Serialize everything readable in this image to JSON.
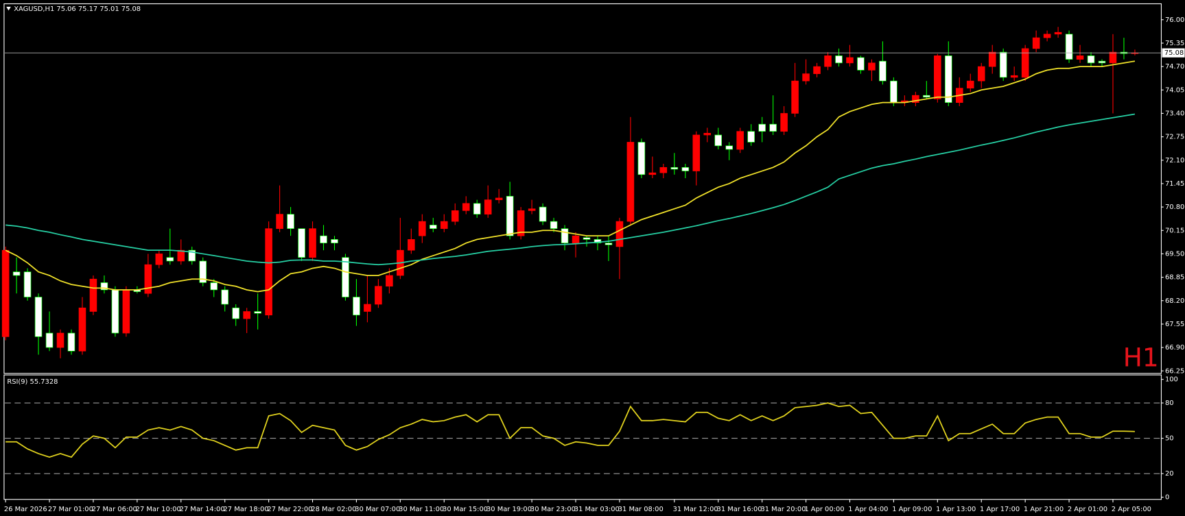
{
  "chart_data": [
    {
      "type": "candlestick",
      "title": "XAGUSD,H1  75.06 75.17 75.01 75.08",
      "annotation": "H1",
      "categories": [
        "26 Mar 2026",
        null,
        null,
        null,
        "27 Mar 01:00",
        null,
        null,
        null,
        "27 Mar 06:00",
        null,
        null,
        null,
        "27 Mar 10:00",
        null,
        null,
        null,
        "27 Mar 14:00",
        null,
        null,
        null,
        "27 Mar 18:00",
        null,
        null,
        null,
        "27 Mar 22:00",
        null,
        null,
        null,
        "28 Mar 02:00",
        null,
        null,
        null,
        "30 Mar 07:00",
        null,
        null,
        null,
        "30 Mar 11:00",
        null,
        null,
        null,
        "30 Mar 15:00",
        null,
        null,
        null,
        "30 Mar 19:00",
        null,
        null,
        null,
        "30 Mar 23:00",
        null,
        null,
        null,
        "31 Mar 03:00",
        null,
        null,
        null,
        "31 Mar 08:00",
        null,
        null,
        null,
        null,
        "31 Mar 12:00",
        null,
        null,
        null,
        "31 Mar 16:00",
        null,
        null,
        null,
        "31 Mar 20:00",
        null,
        null,
        null,
        "1 Apr 00:00",
        null,
        null,
        null,
        "1 Apr 04:00",
        null,
        null,
        null,
        "1 Apr 09:00",
        null,
        null,
        null,
        "1 Apr 13:00",
        null,
        null,
        null,
        "1 Apr 17:00",
        null,
        null,
        null,
        "1 Apr 21:00",
        null,
        null,
        null,
        "2 Apr 01:00",
        null,
        null,
        null,
        "2 Apr 05:00",
        null,
        null
      ],
      "open": [
        67.2,
        69.0,
        69.0,
        68.3,
        67.3,
        66.9,
        67.3,
        66.8,
        67.9,
        68.7,
        68.5,
        67.3,
        68.5,
        68.4,
        69.2,
        69.4,
        69.3,
        69.6,
        69.3,
        68.7,
        68.5,
        68.0,
        67.7,
        67.9,
        67.8,
        70.2,
        70.6,
        70.2,
        69.4,
        70.0,
        69.9,
        69.4,
        68.3,
        67.9,
        68.1,
        68.6,
        68.9,
        69.6,
        70.0,
        70.3,
        70.2,
        70.4,
        70.7,
        70.9,
        70.6,
        71.0,
        71.1,
        70.0,
        70.7,
        70.8,
        70.4,
        70.2,
        69.8,
        69.95,
        69.9,
        69.8,
        69.7,
        70.4,
        72.6,
        71.7,
        71.75,
        71.9,
        71.9,
        71.8,
        72.8,
        72.8,
        72.5,
        72.4,
        72.9,
        73.1,
        73.1,
        72.9,
        73.4,
        74.3,
        74.5,
        74.7,
        75.0,
        74.8,
        74.95,
        74.6,
        74.85,
        74.3,
        73.7,
        73.7,
        73.9,
        73.8,
        75.0,
        73.7,
        74.1,
        74.3,
        74.7,
        75.1,
        74.4,
        74.4,
        75.2,
        75.5,
        75.6,
        75.6,
        74.9,
        75.0,
        74.85,
        74.8,
        75.1,
        75.06
      ],
      "high": [
        69.7,
        69.4,
        69.1,
        68.4,
        67.9,
        67.4,
        67.4,
        68.3,
        68.9,
        68.9,
        68.6,
        68.6,
        68.6,
        69.5,
        69.6,
        70.2,
        69.9,
        69.7,
        69.4,
        68.8,
        68.6,
        68.1,
        68.0,
        68.4,
        70.4,
        71.4,
        70.8,
        70.2,
        70.4,
        70.3,
        70.0,
        69.5,
        68.8,
        68.9,
        68.8,
        69.1,
        70.5,
        70.2,
        70.6,
        70.5,
        70.6,
        70.9,
        71.1,
        71.0,
        71.4,
        71.3,
        71.5,
        70.8,
        71.0,
        70.9,
        70.5,
        70.3,
        70.1,
        70.0,
        70.0,
        70.0,
        70.5,
        73.3,
        72.7,
        72.2,
        72.0,
        72.3,
        72.0,
        72.9,
        73.0,
        73.0,
        72.6,
        73.0,
        73.1,
        73.3,
        73.9,
        73.6,
        74.8,
        74.9,
        74.8,
        75.1,
        75.2,
        75.3,
        75.0,
        74.9,
        75.4,
        74.4,
        73.9,
        74.0,
        74.3,
        75.05,
        75.4,
        74.4,
        74.5,
        74.8,
        75.3,
        75.2,
        74.7,
        75.3,
        75.7,
        75.7,
        75.8,
        75.7,
        75.3,
        75.1,
        74.9,
        75.6,
        75.5,
        75.17
      ],
      "low": [
        67.1,
        68.4,
        68.2,
        66.7,
        66.8,
        66.6,
        66.7,
        66.7,
        67.8,
        68.4,
        67.2,
        67.2,
        68.4,
        68.3,
        69.1,
        69.2,
        69.2,
        69.2,
        68.6,
        68.3,
        67.9,
        67.5,
        67.3,
        67.4,
        67.7,
        70.1,
        70.0,
        69.3,
        69.3,
        69.6,
        69.6,
        68.2,
        67.5,
        67.6,
        68.0,
        68.4,
        68.8,
        69.5,
        69.8,
        70.1,
        70.1,
        70.3,
        70.6,
        70.5,
        70.5,
        70.9,
        69.9,
        69.9,
        70.6,
        70.3,
        70.1,
        69.6,
        69.4,
        69.7,
        69.6,
        69.3,
        68.8,
        70.3,
        71.6,
        71.6,
        71.6,
        71.7,
        71.6,
        71.4,
        72.6,
        72.4,
        72.1,
        72.3,
        72.5,
        72.6,
        72.8,
        72.8,
        73.3,
        74.2,
        74.4,
        74.6,
        74.7,
        74.7,
        74.5,
        74.3,
        74.2,
        73.6,
        73.6,
        73.6,
        73.8,
        73.7,
        73.6,
        73.6,
        74.0,
        74.1,
        74.5,
        74.3,
        74.3,
        74.3,
        75.1,
        75.4,
        75.5,
        74.8,
        74.8,
        74.7,
        74.7,
        73.4,
        74.9,
        75.01
      ],
      "close": [
        69.6,
        68.9,
        68.3,
        67.2,
        66.9,
        67.3,
        66.8,
        68.0,
        68.8,
        68.5,
        67.3,
        68.5,
        68.45,
        69.2,
        69.5,
        69.3,
        69.6,
        69.3,
        68.7,
        68.5,
        68.1,
        67.7,
        67.9,
        67.85,
        70.2,
        70.6,
        70.2,
        69.4,
        70.2,
        69.8,
        69.8,
        68.3,
        67.8,
        68.1,
        68.6,
        68.9,
        69.6,
        69.9,
        70.4,
        70.2,
        70.4,
        70.7,
        70.9,
        70.6,
        71.0,
        71.05,
        70.0,
        70.7,
        70.75,
        70.4,
        70.2,
        69.8,
        70.0,
        69.9,
        69.8,
        69.75,
        70.4,
        72.6,
        71.7,
        71.75,
        71.9,
        71.85,
        71.8,
        72.8,
        72.85,
        72.5,
        72.4,
        72.9,
        72.6,
        72.9,
        72.9,
        73.4,
        74.3,
        74.5,
        74.7,
        75.0,
        74.8,
        74.95,
        74.6,
        74.8,
        74.3,
        73.7,
        73.75,
        73.9,
        73.85,
        75.0,
        73.7,
        74.1,
        74.3,
        74.7,
        75.1,
        74.4,
        74.45,
        75.2,
        75.5,
        75.6,
        75.65,
        74.9,
        75.0,
        74.8,
        74.8,
        75.1,
        75.06,
        75.08
      ],
      "up_color": "#ff0000",
      "down_color": "#ffffff",
      "down_wick_color": "#00ff00",
      "series": [
        {
          "color": "#f2e32a",
          "values": [
            69.6,
            69.45,
            69.25,
            69.0,
            68.9,
            68.75,
            68.65,
            68.6,
            68.55,
            68.55,
            68.5,
            68.5,
            68.5,
            68.55,
            68.6,
            68.7,
            68.75,
            68.8,
            68.8,
            68.75,
            68.65,
            68.6,
            68.5,
            68.45,
            68.5,
            68.75,
            68.95,
            69.0,
            69.1,
            69.15,
            69.1,
            69.0,
            68.95,
            68.9,
            68.9,
            69.0,
            69.1,
            69.2,
            69.35,
            69.45,
            69.55,
            69.65,
            69.8,
            69.9,
            69.95,
            70.0,
            70.05,
            70.1,
            70.1,
            70.15,
            70.15,
            70.1,
            70.05,
            70.0,
            70.0,
            70.0,
            70.15,
            70.3,
            70.45,
            70.55,
            70.65,
            70.75,
            70.85,
            71.05,
            71.2,
            71.35,
            71.45,
            71.6,
            71.7,
            71.8,
            71.9,
            72.05,
            72.3,
            72.5,
            72.75,
            72.95,
            73.3,
            73.45,
            73.55,
            73.65,
            73.7,
            73.7,
            73.7,
            73.75,
            73.8,
            73.85,
            73.85,
            73.9,
            73.95,
            74.05,
            74.1,
            74.15,
            74.25,
            74.35,
            74.5,
            74.6,
            74.65,
            74.65,
            74.7,
            74.7,
            74.7,
            74.75,
            74.8,
            74.85
          ]
        },
        {
          "color": "#26d0a4",
          "values": [
            70.3,
            70.27,
            70.22,
            70.15,
            70.1,
            70.03,
            69.97,
            69.9,
            69.85,
            69.8,
            69.75,
            69.7,
            69.65,
            69.6,
            69.6,
            69.6,
            69.58,
            69.55,
            69.5,
            69.45,
            69.4,
            69.35,
            69.3,
            69.27,
            69.25,
            69.27,
            69.32,
            69.33,
            69.33,
            69.3,
            69.3,
            69.28,
            69.25,
            69.22,
            69.2,
            69.22,
            69.25,
            69.3,
            69.33,
            69.37,
            69.4,
            69.43,
            69.47,
            69.52,
            69.57,
            69.6,
            69.63,
            69.66,
            69.7,
            69.73,
            69.75,
            69.76,
            69.78,
            69.8,
            69.82,
            69.85,
            69.9,
            69.95,
            70.0,
            70.05,
            70.1,
            70.16,
            70.22,
            70.28,
            70.35,
            70.42,
            70.48,
            70.55,
            70.62,
            70.7,
            70.78,
            70.87,
            70.98,
            71.1,
            71.22,
            71.35,
            71.58,
            71.68,
            71.78,
            71.88,
            71.95,
            72.0,
            72.07,
            72.13,
            72.2,
            72.26,
            72.32,
            72.38,
            72.45,
            72.52,
            72.58,
            72.65,
            72.72,
            72.8,
            72.88,
            72.95,
            73.02,
            73.08,
            73.13,
            73.18,
            73.23,
            73.28,
            73.33,
            73.38
          ]
        }
      ],
      "last_price": {
        "value": 75.08,
        "label": "75.08"
      },
      "ylim": [
        66.18,
        76.38
      ],
      "yticks": [
        {
          "value": 76.0,
          "label": "76.00"
        },
        {
          "value": 75.35,
          "label": "75.35"
        },
        {
          "value": 74.7,
          "label": "74.70"
        },
        {
          "value": 74.05,
          "label": "74.05"
        },
        {
          "value": 73.4,
          "label": "73.40"
        },
        {
          "value": 72.75,
          "label": "72.75"
        },
        {
          "value": 72.1,
          "label": "72.10"
        },
        {
          "value": 71.45,
          "label": "71.45"
        },
        {
          "value": 70.8,
          "label": "70.80"
        },
        {
          "value": 70.15,
          "label": "70.15"
        },
        {
          "value": 69.5,
          "label": "69.50"
        },
        {
          "value": 68.85,
          "label": "68.85"
        },
        {
          "value": 68.2,
          "label": "68.20"
        },
        {
          "value": 67.55,
          "label": "67.55"
        },
        {
          "value": 66.9,
          "label": "66.90"
        },
        {
          "value": 66.25,
          "label": "66.25"
        }
      ],
      "grid": false
    },
    {
      "type": "line",
      "title": "RSI(9) 55.7328",
      "series": [
        {
          "color": "#e3d41e",
          "values": [
            47,
            47,
            41,
            37,
            34,
            37,
            34,
            45,
            52,
            50,
            42,
            51,
            51,
            57,
            59,
            57,
            60,
            57,
            50,
            48,
            44,
            40,
            42,
            42,
            69,
            71,
            65,
            55,
            61,
            59,
            57,
            44,
            40,
            43,
            49,
            53,
            59,
            62,
            66,
            64,
            65,
            68,
            70,
            64,
            70,
            70,
            50,
            59,
            59,
            52,
            50,
            44,
            47,
            46,
            44,
            44,
            56,
            77,
            65,
            65,
            66,
            65,
            64,
            72,
            72,
            67,
            65,
            70,
            65,
            69,
            65,
            69,
            76,
            77,
            78,
            80,
            77,
            78,
            71,
            72,
            61,
            50,
            50,
            52,
            52,
            69,
            48,
            54,
            54,
            58,
            62,
            54,
            54,
            63,
            66,
            68,
            68,
            54,
            54,
            51,
            51,
            56,
            56,
            55.7328
          ]
        }
      ],
      "levels": [
        20,
        50,
        80
      ],
      "ylim": [
        -1.9,
        103.8
      ],
      "yticks": [
        100,
        80,
        50,
        20,
        0
      ],
      "grid": false
    }
  ]
}
